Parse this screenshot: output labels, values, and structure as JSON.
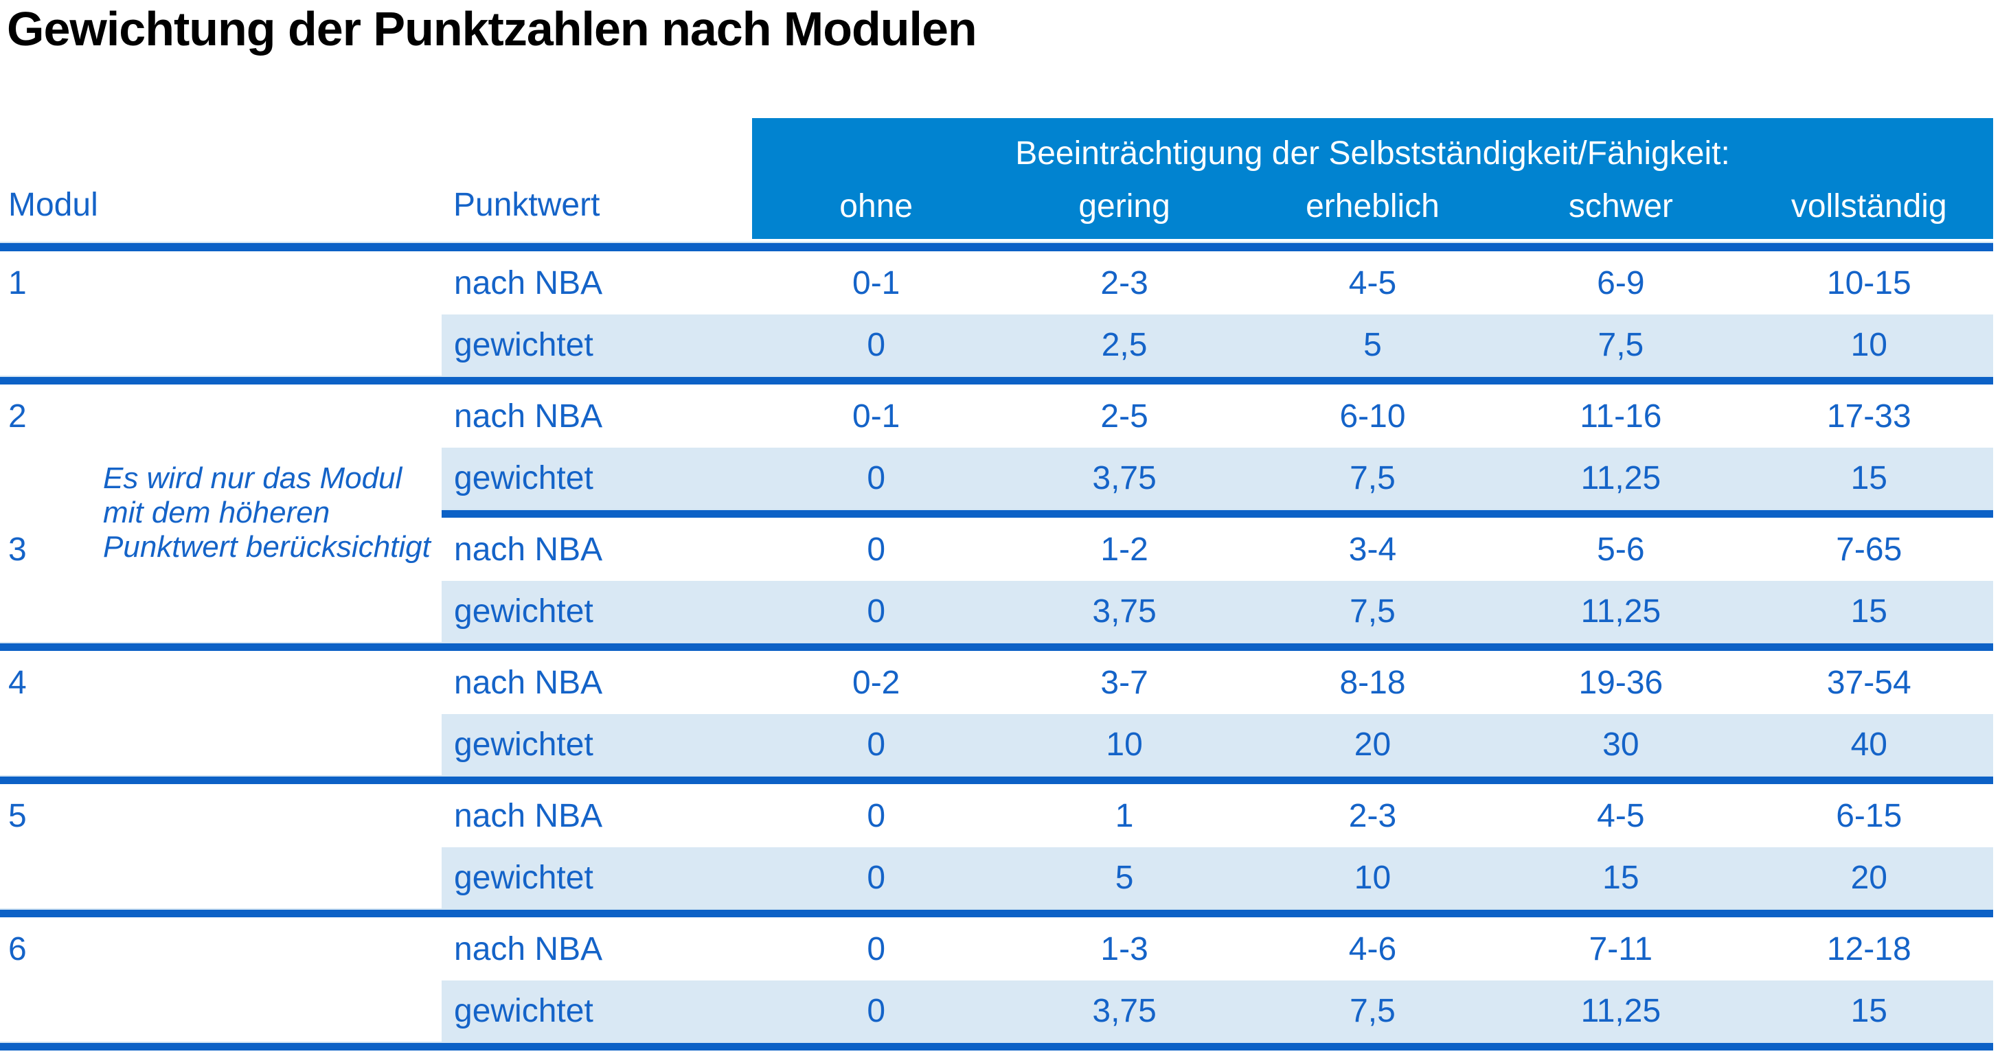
{
  "title": "Gewichtung der Punktzahlen nach Modulen",
  "colors": {
    "band_blue": "#0183D0",
    "divider_blue": "#0C61C6",
    "row_alt": "#D9E8F4",
    "text_blue": "#1463C8",
    "title_text": "#000000",
    "band_text": "#FFFFFF"
  },
  "header": {
    "modul_label": "Modul",
    "punktwert_label": "Punktwert",
    "group_label": "Beeinträchtigung der Selbstständigkeit/Fähigkeit:",
    "severity_labels": [
      "ohne",
      "gering",
      "erheblich",
      "schwer",
      "vollständig"
    ]
  },
  "row_labels": {
    "nba": "nach NBA",
    "weighted": "gewichtet"
  },
  "note": {
    "line1": "Es wird nur das Modul",
    "line2": "mit dem höheren",
    "line3": "Punktwert berücksichtigt"
  },
  "modules": [
    {
      "number": "1",
      "nba": [
        "0-1",
        "2-3",
        "4-5",
        "6-9",
        "10-15"
      ],
      "weighted": [
        "0",
        "2,5",
        "5",
        "7,5",
        "10"
      ]
    },
    {
      "number": "2",
      "nba": [
        "0-1",
        "2-5",
        "6-10",
        "11-16",
        "17-33"
      ],
      "weighted": [
        "0",
        "3,75",
        "7,5",
        "11,25",
        "15"
      ]
    },
    {
      "number": "3",
      "nba": [
        "0",
        "1-2",
        "3-4",
        "5-6",
        "7-65"
      ],
      "weighted": [
        "0",
        "3,75",
        "7,5",
        "11,25",
        "15"
      ]
    },
    {
      "number": "4",
      "nba": [
        "0-2",
        "3-7",
        "8-18",
        "19-36",
        "37-54"
      ],
      "weighted": [
        "0",
        "10",
        "20",
        "30",
        "40"
      ]
    },
    {
      "number": "5",
      "nba": [
        "0",
        "1",
        "2-3",
        "4-5",
        "6-15"
      ],
      "weighted": [
        "0",
        "5",
        "10",
        "15",
        "20"
      ]
    },
    {
      "number": "6",
      "nba": [
        "0",
        "1-3",
        "4-6",
        "7-11",
        "12-18"
      ],
      "weighted": [
        "0",
        "3,75",
        "7,5",
        "11,25",
        "15"
      ]
    }
  ]
}
